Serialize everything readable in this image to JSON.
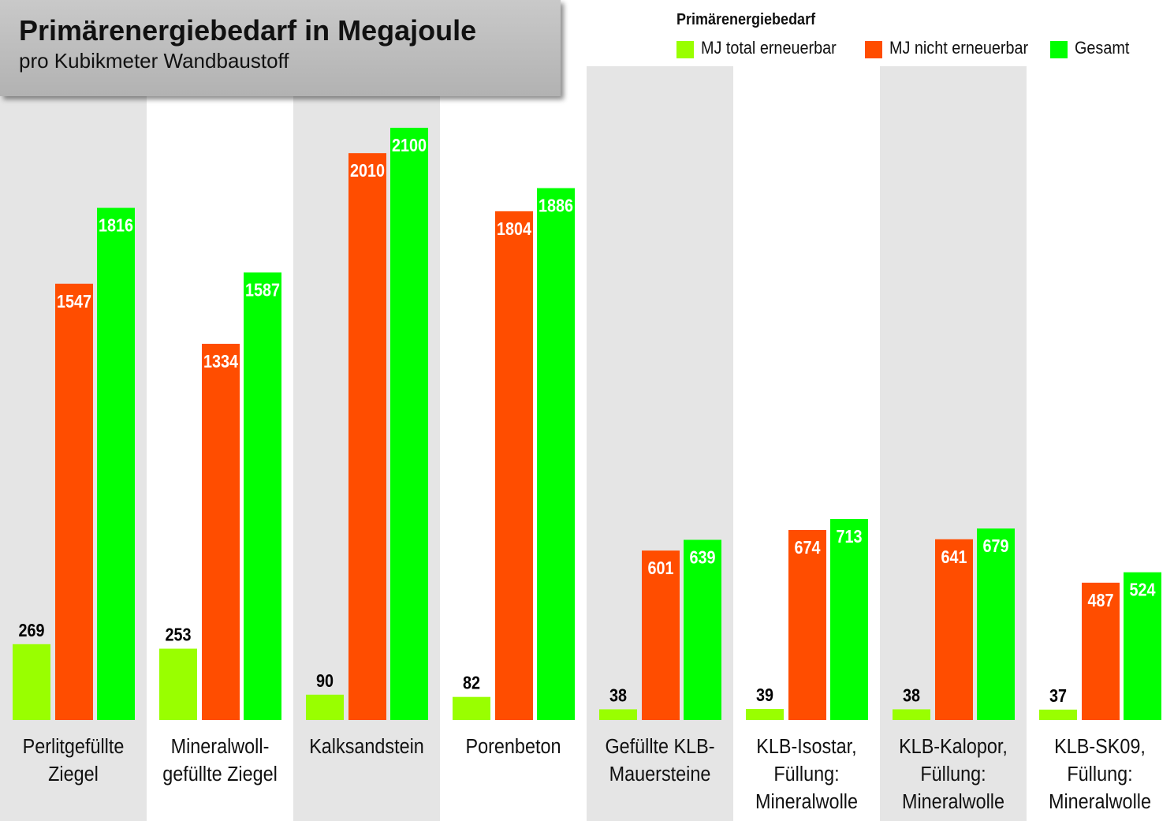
{
  "header": {
    "title": "Primärenergiebedarf in Megajoule",
    "subtitle": "pro Kubikmeter Wandbaustoff"
  },
  "legend": {
    "title": "Primärenergiebedarf",
    "items": [
      {
        "label": "MJ total erneuerbar",
        "color": "#99ff00"
      },
      {
        "label": "MJ nicht erneuerbar",
        "color": "#ff4d00"
      },
      {
        "label": "Gesamt",
        "color": "#00ff00"
      }
    ]
  },
  "chart_data": {
    "type": "bar",
    "title": "Primärenergiebedarf in Megajoule",
    "subtitle": "pro Kubikmeter Wandbaustoff",
    "legend_title": "Primärenergiebedarf",
    "legend_position": "top-right",
    "grid": false,
    "xlabel": "",
    "ylabel": "",
    "ylim": [
      0,
      2100
    ],
    "categories": [
      [
        "Perlitgefüllte",
        "Ziegel"
      ],
      [
        "Mineralwoll-",
        "gefüllte Ziegel"
      ],
      [
        "Kalksandstein"
      ],
      [
        "Porenbeton"
      ],
      [
        "Gefüllte KLB-",
        "Mauersteine"
      ],
      [
        "KLB-Isostar,",
        "Füllung:",
        "Mineralwolle"
      ],
      [
        "KLB-Kalopor,",
        "Füllung:",
        "Mineralwolle"
      ],
      [
        "KLB-SK09,",
        "Füllung:",
        "Mineralwolle"
      ]
    ],
    "series": [
      {
        "name": "MJ total erneuerbar",
        "color": "#99ff00",
        "label_color": "#000000",
        "values": [
          269,
          253,
          90,
          82,
          38,
          39,
          38,
          37
        ]
      },
      {
        "name": "MJ nicht erneuerbar",
        "color": "#ff4d00",
        "label_color": "#ffffff",
        "values": [
          1547,
          1334,
          2010,
          1804,
          601,
          674,
          641,
          487
        ]
      },
      {
        "name": "Gesamt",
        "color": "#00ff00",
        "label_color": "#ffffff",
        "values": [
          1816,
          1587,
          2100,
          1886,
          639,
          713,
          679,
          524
        ]
      }
    ],
    "band_color": "#e5e5e5"
  }
}
